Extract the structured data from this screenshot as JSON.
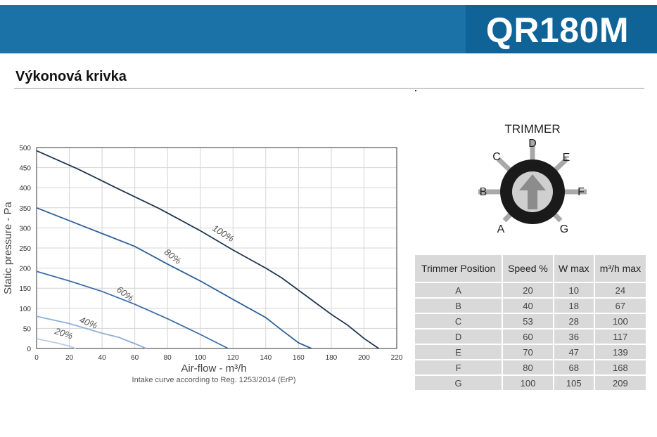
{
  "header": {
    "product": "QR180M",
    "section_title": "Výkonová krivka"
  },
  "chart_data": {
    "type": "line",
    "xlabel": "Air-flow - m³/h",
    "ylabel": "Static pressure - Pa",
    "note": "Intake curve according to Reg. 1253/2014 (ErP)",
    "xlim": [
      0,
      220
    ],
    "ylim": [
      0,
      500
    ],
    "xticks": [
      0,
      20,
      40,
      60,
      80,
      100,
      120,
      140,
      160,
      180,
      200,
      220
    ],
    "yticks": [
      0,
      50,
      100,
      150,
      200,
      250,
      300,
      350,
      400,
      450,
      500
    ],
    "grid": true,
    "series": [
      {
        "name": "100%",
        "color": "#1f3550",
        "points": [
          [
            0,
            492
          ],
          [
            25,
            447
          ],
          [
            50,
            397
          ],
          [
            75,
            348
          ],
          [
            100,
            293
          ],
          [
            120,
            245
          ],
          [
            140,
            200
          ],
          [
            150,
            175
          ],
          [
            165,
            130
          ],
          [
            180,
            85
          ],
          [
            190,
            58
          ],
          [
            200,
            25
          ],
          [
            209,
            0
          ]
        ]
      },
      {
        "name": "80%",
        "color": "#2d5f94",
        "points": [
          [
            0,
            350
          ],
          [
            20,
            318
          ],
          [
            40,
            286
          ],
          [
            60,
            254
          ],
          [
            80,
            210
          ],
          [
            100,
            168
          ],
          [
            120,
            122
          ],
          [
            140,
            77
          ],
          [
            150,
            45
          ],
          [
            160,
            14
          ],
          [
            168,
            0
          ]
        ]
      },
      {
        "name": "60%",
        "color": "#3b6ea8",
        "points": [
          [
            0,
            192
          ],
          [
            20,
            168
          ],
          [
            40,
            142
          ],
          [
            60,
            110
          ],
          [
            80,
            74
          ],
          [
            100,
            35
          ],
          [
            117,
            0
          ]
        ]
      },
      {
        "name": "40%",
        "color": "#8fb0d8",
        "points": [
          [
            0,
            80
          ],
          [
            20,
            62
          ],
          [
            40,
            38
          ],
          [
            50,
            28
          ],
          [
            60,
            12
          ],
          [
            67,
            0
          ]
        ]
      },
      {
        "name": "20%",
        "color": "#b9cde6",
        "points": [
          [
            0,
            24
          ],
          [
            12,
            14
          ],
          [
            20,
            6
          ],
          [
            24,
            0
          ]
        ]
      }
    ]
  },
  "trimmer": {
    "title": "TRIMMER",
    "positions": [
      "A",
      "B",
      "C",
      "D",
      "E",
      "F",
      "G"
    ],
    "arrow": "arrow-up-icon"
  },
  "table": {
    "headers": [
      "Trimmer Position",
      "Speed %",
      "W max",
      "m³/h max"
    ],
    "rows": [
      [
        "A",
        "20",
        "10",
        "24"
      ],
      [
        "B",
        "40",
        "18",
        "67"
      ],
      [
        "C",
        "53",
        "28",
        "100"
      ],
      [
        "D",
        "60",
        "36",
        "117"
      ],
      [
        "E",
        "70",
        "47",
        "139"
      ],
      [
        "F",
        "80",
        "68",
        "168"
      ],
      [
        "G",
        "100",
        "105",
        "209"
      ]
    ]
  }
}
